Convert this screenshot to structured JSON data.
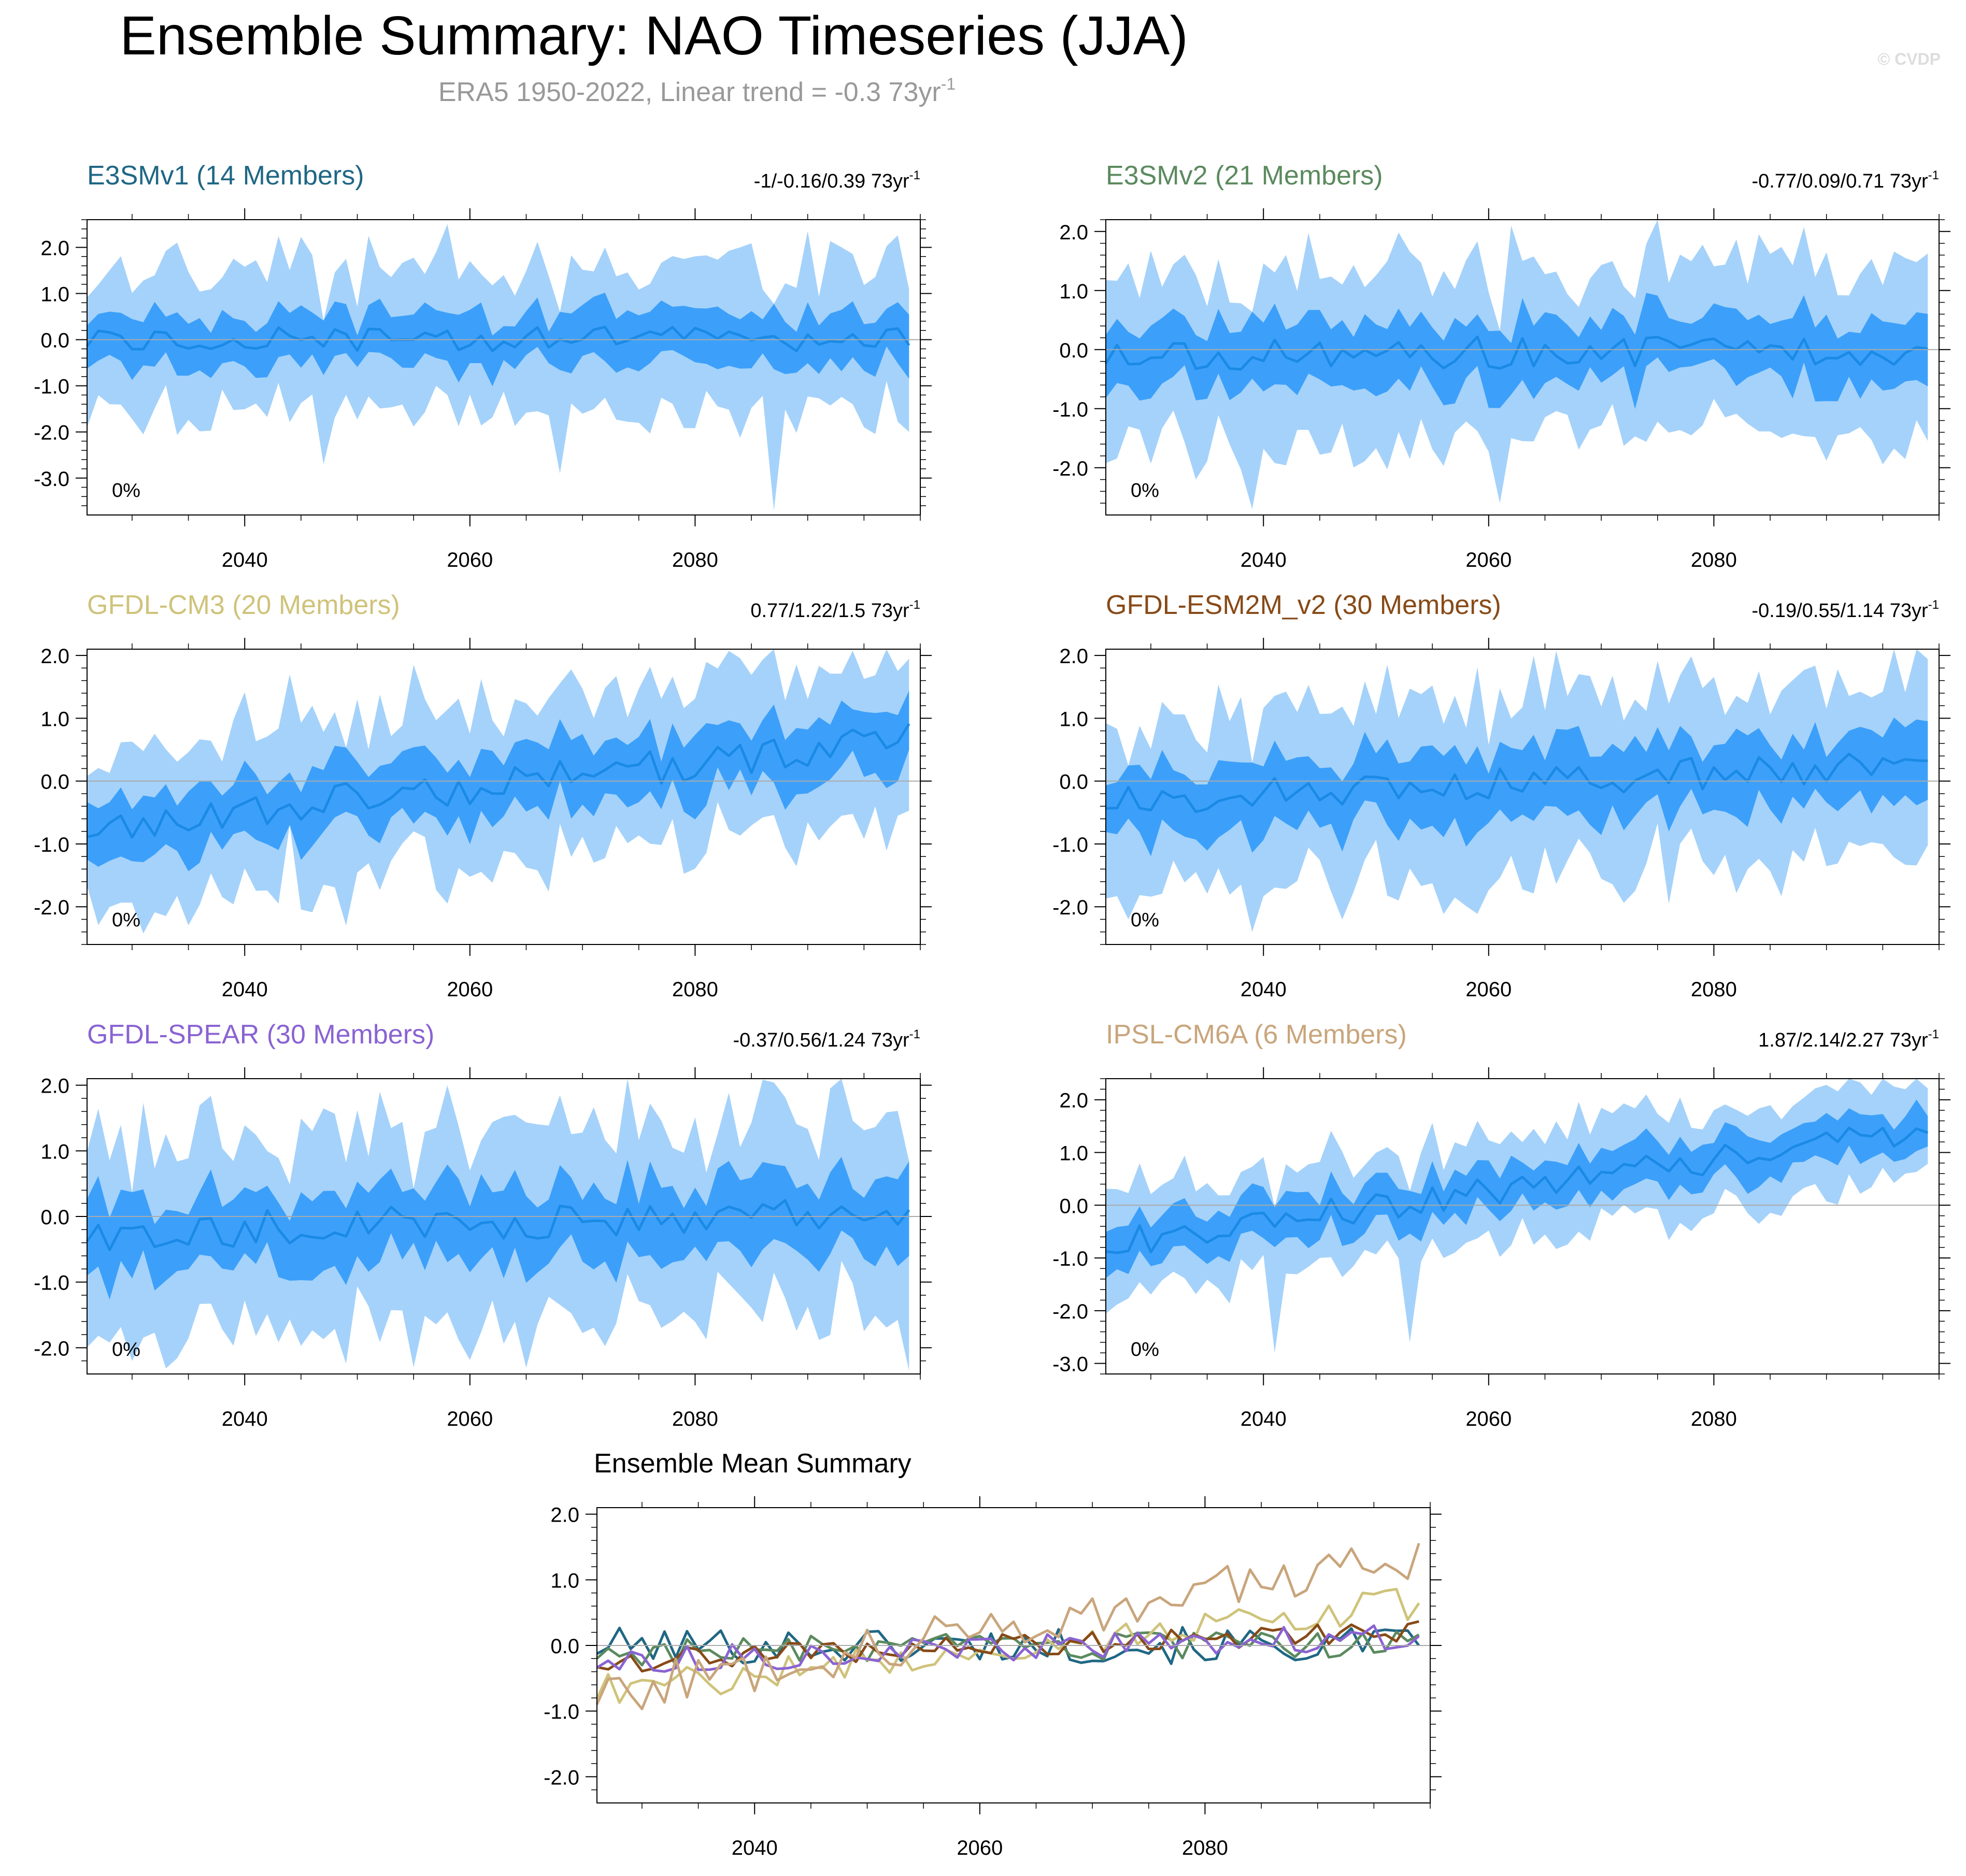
{
  "page": {
    "title": "Ensemble Summary: NAO Timeseries (JJA)",
    "subtitle_main": "ERA5 1950-2022, Linear trend = -0.3 73yr",
    "subtitle_sup": "-1",
    "watermark": "© CVDP"
  },
  "colors": {
    "outer_band": "#a5d2fa",
    "inner_band": "#3ca0fa",
    "mean_line": "#1a8ae6",
    "axis": "#000000",
    "grid_zero": "#aaaaaa",
    "subtitle": "#999999",
    "watermark": "#dddddd"
  },
  "chart_data": [
    {
      "type": "area",
      "id": "e3smv1",
      "title": "E3SMv1 (14 Members)",
      "title_color": "#1f6784",
      "trend_label": "-1/-0.16/0.39 73yr",
      "trend_sup": "-1",
      "percent_label": "0%",
      "xlim": [
        2026,
        2100
      ],
      "ylim": [
        -3.8,
        2.6
      ],
      "yticks": [
        2.0,
        1.0,
        0.0,
        -1.0,
        -2.0,
        -3.0
      ],
      "ytick_labels": [
        "2.0",
        "1.0",
        "0.0",
        "-1.0",
        "-2.0",
        "-3.0"
      ],
      "xticks": [
        2040,
        2060,
        2080
      ],
      "xtick_labels": [
        "2040",
        "2060",
        "2080"
      ],
      "base": 0.0,
      "drift": 0.0,
      "outer_spread": 1.5,
      "inner_spread": 0.55,
      "seed": 11,
      "anchors": [
        [
          2058,
          2.5,
          -1.2
        ],
        [
          2087,
          -0.5,
          -3.7
        ],
        [
          2047,
          0.2,
          -2.7
        ],
        [
          2068,
          -0.4,
          -2.9
        ]
      ]
    },
    {
      "type": "area",
      "id": "e3smv2",
      "title": "E3SMv2 (21 Members)",
      "title_color": "#5b8a5e",
      "trend_label": "-0.77/0.09/0.71 73yr",
      "trend_sup": "-1",
      "percent_label": "0%",
      "xlim": [
        2026,
        2100
      ],
      "ylim": [
        -2.8,
        2.2
      ],
      "yticks": [
        2.0,
        1.0,
        0.0,
        -1.0,
        -2.0
      ],
      "ytick_labels": [
        "2.0",
        "1.0",
        "0.0",
        "-1.0",
        "-2.0"
      ],
      "xticks": [
        2040,
        2060,
        2080
      ],
      "xtick_labels": [
        "2040",
        "2060",
        "2080"
      ],
      "base": -0.1,
      "drift": 0.1,
      "outer_spread": 1.3,
      "inner_spread": 0.55,
      "seed": 23,
      "anchors": [
        [
          2062,
          2.1,
          -1.5
        ],
        [
          2039,
          0.0,
          -2.7
        ],
        [
          2061,
          0.2,
          -2.6
        ]
      ]
    },
    {
      "type": "area",
      "id": "gfdl-cm3",
      "title": "GFDL-CM3 (20 Members)",
      "title_color": "#cfc37a",
      "trend_label": "0.77/1.22/1.5 73yr",
      "trend_sup": "-1",
      "percent_label": "0%",
      "xlim": [
        2026,
        2100
      ],
      "ylim": [
        -2.6,
        2.1
      ],
      "yticks": [
        2.0,
        1.0,
        0.0,
        -1.0,
        -2.0
      ],
      "ytick_labels": [
        "2.0",
        "1.0",
        "0.0",
        "-1.0",
        "-2.0"
      ],
      "xticks": [
        2040,
        2060,
        2080
      ],
      "xtick_labels": [
        "2040",
        "2060",
        "2080"
      ],
      "base": -0.75,
      "drift": 1.4,
      "outer_spread": 1.1,
      "inner_spread": 0.5,
      "seed": 37,
      "anchors": [
        [
          2055,
          1.85,
          -0.8
        ],
        [
          2049,
          -0.5,
          -2.3
        ],
        [
          2044,
          1.7,
          -0.6
        ]
      ]
    },
    {
      "type": "area",
      "id": "gfdl-esm2m",
      "title": "GFDL-ESM2M_v2 (30 Members)",
      "title_color": "#874a17",
      "trend_label": "-0.19/0.55/1.14 73yr",
      "trend_sup": "-1",
      "percent_label": "0%",
      "xlim": [
        2026,
        2100
      ],
      "ylim": [
        -2.6,
        2.1
      ],
      "yticks": [
        2.0,
        1.0,
        0.0,
        -1.0,
        -2.0
      ],
      "ytick_labels": [
        "2.0",
        "1.0",
        "0.0",
        "-1.0",
        "-2.0"
      ],
      "xticks": [
        2040,
        2060,
        2080
      ],
      "xtick_labels": [
        "2040",
        "2060",
        "2080"
      ],
      "base": -0.3,
      "drift": 0.55,
      "outer_spread": 1.25,
      "inner_spread": 0.55,
      "seed": 53,
      "anchors": [
        [
          2039,
          0.0,
          -2.4
        ],
        [
          2028,
          0.1,
          -2.2
        ]
      ]
    },
    {
      "type": "area",
      "id": "gfdl-spear",
      "title": "GFDL-SPEAR (30 Members)",
      "title_color": "#8a63d2",
      "trend_label": "-0.37/0.56/1.24 73yr",
      "trend_sup": "-1",
      "percent_label": "0%",
      "xlim": [
        2026,
        2100
      ],
      "ylim": [
        -2.4,
        2.1
      ],
      "yticks": [
        2.0,
        1.0,
        0.0,
        -1.0,
        -2.0
      ],
      "ytick_labels": [
        "2.0",
        "1.0",
        "0.0",
        "-1.0",
        "-2.0"
      ],
      "xticks": [
        2040,
        2060,
        2080
      ],
      "xtick_labels": [
        "2040",
        "2060",
        "2080"
      ],
      "base": -0.25,
      "drift": 0.35,
      "outer_spread": 1.3,
      "inner_spread": 0.55,
      "seed": 71,
      "anchors": [
        [
          2099,
          -0.2,
          -2.35
        ],
        [
          2055,
          0.3,
          -2.3
        ],
        [
          2030,
          0.3,
          -2.2
        ]
      ]
    },
    {
      "type": "area",
      "id": "ipsl-cm6a",
      "title": "IPSL-CM6A (6 Members)",
      "title_color": "#c9a57c",
      "trend_label": "1.87/2.14/2.27 73yr",
      "trend_sup": "-1",
      "percent_label": "0%",
      "xlim": [
        2026,
        2100
      ],
      "ylim": [
        -3.2,
        2.4
      ],
      "yticks": [
        2.0,
        1.0,
        0.0,
        -1.0,
        -2.0,
        -3.0
      ],
      "ytick_labels": [
        "2.0",
        "1.0",
        "0.0",
        "-1.0",
        "-2.0",
        "-3.0"
      ],
      "xticks": [
        2040,
        2060,
        2080
      ],
      "xtick_labels": [
        "2040",
        "2060",
        "2080"
      ],
      "base": -0.75,
      "drift": 2.2,
      "outer_spread": 0.8,
      "inner_spread": 0.42,
      "seed": 89,
      "anchors": [
        [
          2097,
          2.2,
          0.6
        ],
        [
          2041,
          -0.3,
          -2.8
        ],
        [
          2053,
          -0.9,
          -2.6
        ]
      ]
    },
    {
      "type": "line",
      "id": "ensemble-mean",
      "title": "Ensemble Mean Summary",
      "xlim": [
        2026,
        2100
      ],
      "ylim": [
        -2.4,
        2.1
      ],
      "yticks": [
        2.0,
        1.0,
        0.0,
        -1.0,
        -2.0
      ],
      "ytick_labels": [
        "2.0",
        "1.0",
        "0.0",
        "-1.0",
        "-2.0"
      ],
      "xticks": [
        2040,
        2060,
        2080
      ],
      "xtick_labels": [
        "2040",
        "2060",
        "2080"
      ],
      "series": [
        {
          "name": "E3SMv1",
          "color": "#1f6784",
          "base": 0.0,
          "drift": 0.0,
          "noise": 0.28,
          "seed": 101
        },
        {
          "name": "E3SMv2",
          "color": "#5b8a5e",
          "base": -0.1,
          "drift": 0.12,
          "noise": 0.22,
          "seed": 103
        },
        {
          "name": "GFDL-CM3",
          "color": "#cfc37a",
          "base": -0.7,
          "drift": 1.35,
          "noise": 0.25,
          "seed": 107
        },
        {
          "name": "GFDL-ESM2M_v2",
          "color": "#874a17",
          "base": -0.25,
          "drift": 0.5,
          "noise": 0.18,
          "seed": 109
        },
        {
          "name": "GFDL-SPEAR",
          "color": "#8a63d2",
          "base": -0.25,
          "drift": 0.4,
          "noise": 0.2,
          "seed": 113
        },
        {
          "name": "IPSL-CM6A",
          "color": "#c9a57c",
          "base": -0.75,
          "drift": 2.1,
          "noise": 0.35,
          "seed": 127
        }
      ]
    }
  ]
}
